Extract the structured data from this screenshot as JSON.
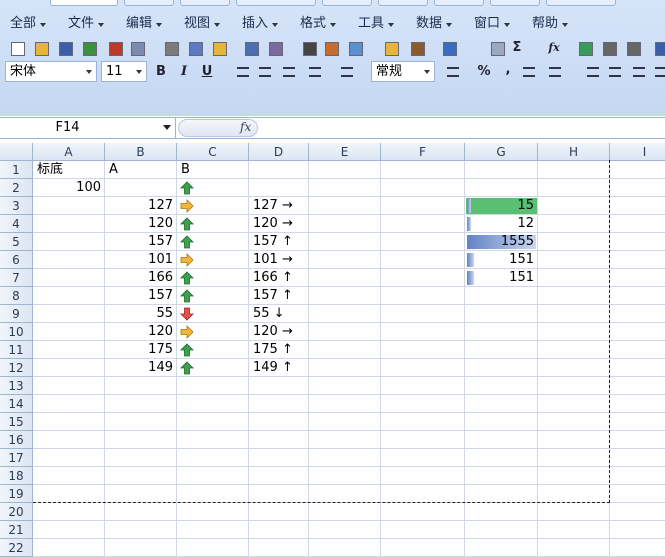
{
  "menu": [
    "全部",
    "文件",
    "编辑",
    "视图",
    "插入",
    "格式",
    "工具",
    "数据",
    "窗口",
    "帮助"
  ],
  "font_name": "宋体",
  "font_size": "11",
  "bold": "B",
  "italic": "I",
  "underline": "U",
  "number_format": "常规",
  "percent": "%",
  "comma": ",",
  "sum": "Σ",
  "function": "fx",
  "name_box": "F14",
  "columns": [
    "A",
    "B",
    "C",
    "D",
    "E",
    "F",
    "G",
    "H",
    "I"
  ],
  "row_numbers": [
    1,
    2,
    3,
    4,
    5,
    6,
    7,
    8,
    9,
    10,
    11,
    12,
    13,
    14,
    15,
    16,
    17,
    18,
    19,
    20,
    21,
    22
  ],
  "grid": [
    [
      "标底",
      "A",
      "B",
      null,
      null,
      null,
      null,
      null
    ],
    [
      100,
      null,
      null,
      null,
      null,
      null,
      null,
      null
    ],
    [
      null,
      127,
      null,
      "127 →",
      null,
      null,
      15,
      null
    ],
    [
      null,
      120,
      null,
      "120 →",
      null,
      null,
      12,
      null
    ],
    [
      null,
      157,
      null,
      "157 ↑",
      null,
      null,
      1555,
      null
    ],
    [
      null,
      101,
      null,
      "101 →",
      null,
      null,
      151,
      null
    ],
    [
      null,
      166,
      null,
      "166 ↑",
      null,
      null,
      151,
      null
    ],
    [
      null,
      157,
      null,
      "157 ↑",
      null,
      null,
      null,
      null
    ],
    [
      null,
      55,
      null,
      "55 ↓",
      null,
      null,
      null,
      null
    ],
    [
      null,
      120,
      null,
      "120 →",
      null,
      null,
      null,
      null
    ],
    [
      null,
      175,
      null,
      "175 ↑",
      null,
      null,
      null,
      null
    ],
    [
      null,
      149,
      null,
      "149 ↑",
      null,
      null,
      null,
      null
    ]
  ]
}
